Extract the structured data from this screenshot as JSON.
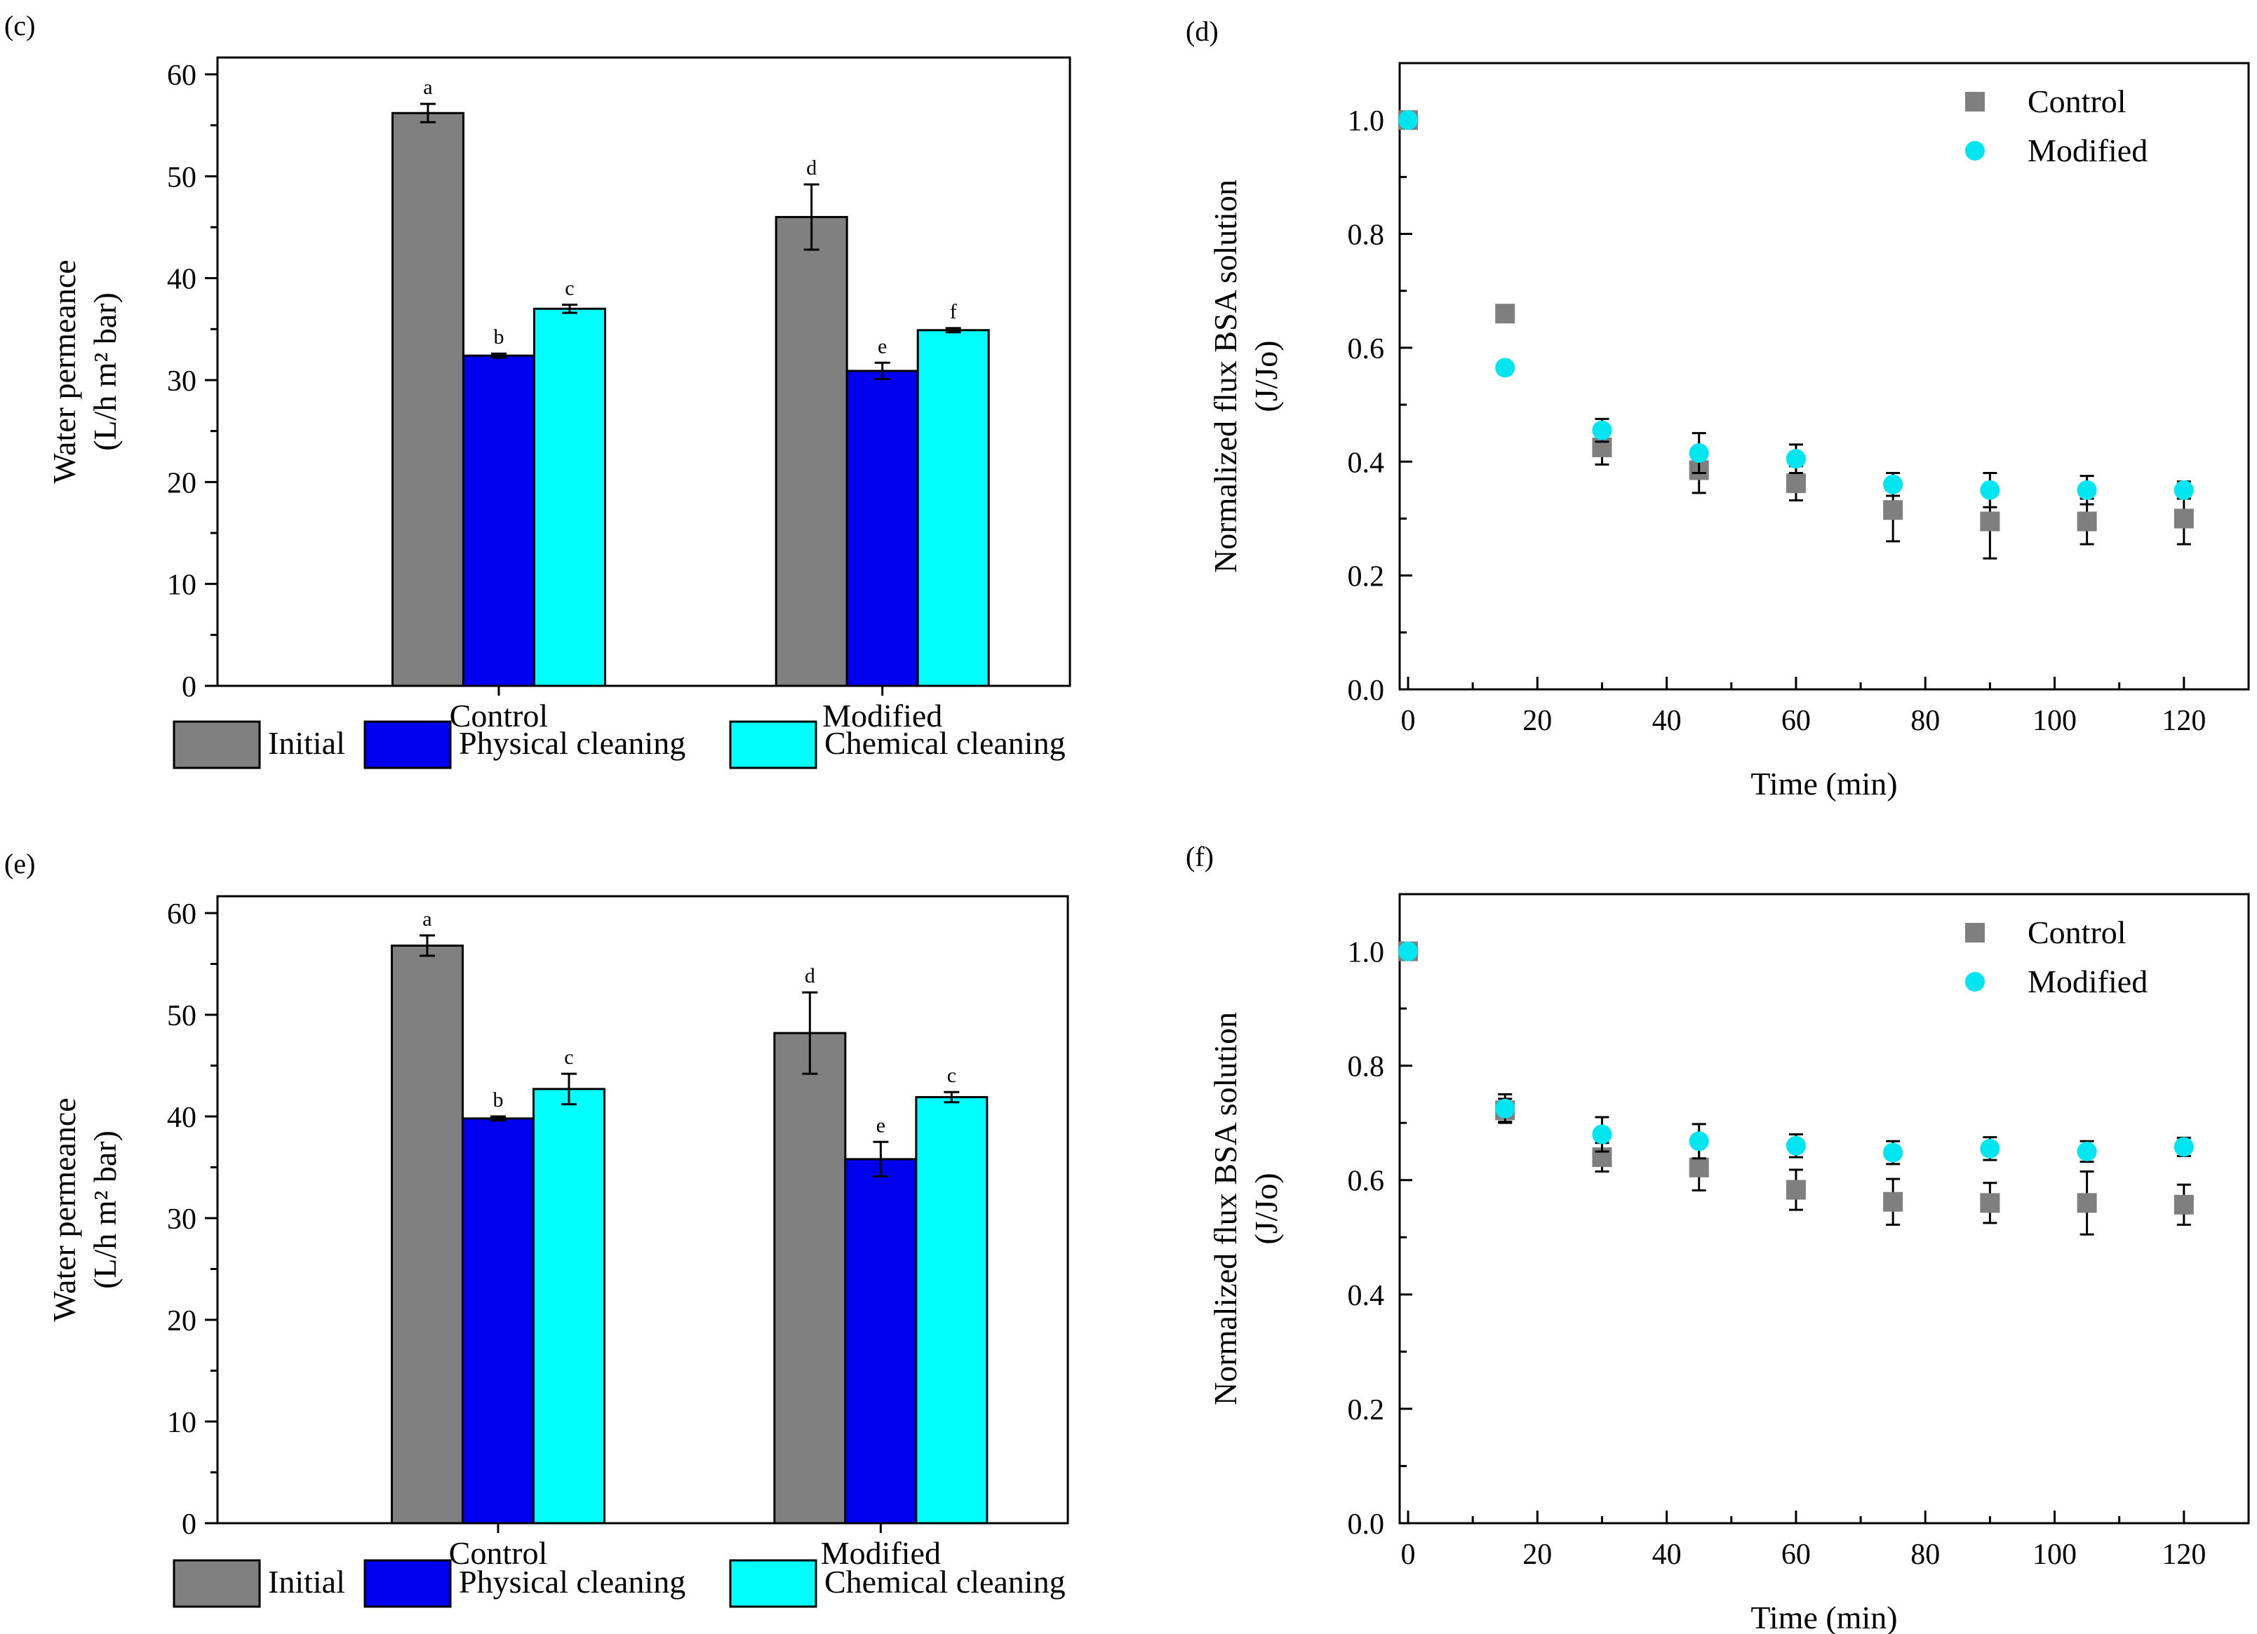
{
  "colors": {
    "initial": "#808080",
    "physical": "#0000ee",
    "chemical": "#00ffff",
    "control_marker": "#7f7f7f",
    "modified_marker": "#00e5f0"
  },
  "chart_data": [
    {
      "panel": "(c)",
      "type": "bar",
      "ylabel": "Water permeance",
      "ylabel_units": "(L/h m² bar)",
      "ylim": [
        0,
        60
      ],
      "yticks": [
        0,
        10,
        20,
        30,
        40,
        50,
        60
      ],
      "categories": [
        "Control",
        "Modified"
      ],
      "series": [
        {
          "name": "Initial",
          "color_key": "initial",
          "values": [
            56.2,
            46.0
          ],
          "errors": [
            0.9,
            3.2
          ],
          "letters": [
            "a",
            "d"
          ]
        },
        {
          "name": "Physical cleaning",
          "color_key": "physical",
          "values": [
            32.4,
            30.9
          ],
          "errors": [
            0.2,
            0.8
          ],
          "letters": [
            "b",
            "e"
          ]
        },
        {
          "name": "Chemical cleaning",
          "color_key": "chemical",
          "values": [
            37.0,
            34.9
          ],
          "errors": [
            0.4,
            0.2
          ],
          "letters": [
            "c",
            "f"
          ]
        }
      ]
    },
    {
      "panel": "(d)",
      "type": "scatter",
      "ylabel": "Normalized flux BSA solution",
      "ylabel_units": "(J/Jo)",
      "xlabel": "Time (min)",
      "xlim": [
        0,
        130
      ],
      "ylim": [
        0,
        1.1
      ],
      "xticks": [
        0,
        20,
        40,
        60,
        80,
        100,
        120
      ],
      "yticks": [
        "0.0",
        "0.2",
        "0.4",
        "0.6",
        "0.8",
        "1.0"
      ],
      "legend_position": "top-right",
      "series": [
        {
          "name": "Control",
          "marker": "square",
          "color_key": "control_marker",
          "x": [
            0,
            15,
            30,
            45,
            60,
            75,
            90,
            105,
            120
          ],
          "y": [
            1.0,
            0.66,
            0.425,
            0.385,
            0.362,
            0.315,
            0.295,
            0.295,
            0.3
          ],
          "err": [
            0.0,
            0.01,
            0.03,
            0.04,
            0.03,
            0.055,
            0.065,
            0.04,
            0.045
          ]
        },
        {
          "name": "Modified",
          "marker": "circle",
          "color_key": "modified_marker",
          "x": [
            0,
            15,
            30,
            45,
            60,
            75,
            90,
            105,
            120
          ],
          "y": [
            1.0,
            0.565,
            0.455,
            0.415,
            0.405,
            0.36,
            0.35,
            0.35,
            0.35
          ],
          "err": [
            0.0,
            0.01,
            0.02,
            0.035,
            0.025,
            0.02,
            0.03,
            0.025,
            0.015
          ]
        }
      ]
    },
    {
      "panel": "(e)",
      "type": "bar",
      "ylabel": "Water permeance",
      "ylabel_units": "(L/h m² bar)",
      "ylim": [
        0,
        60
      ],
      "yticks": [
        0,
        10,
        20,
        30,
        40,
        50,
        60
      ],
      "categories": [
        "Control",
        "Modified"
      ],
      "series": [
        {
          "name": "Initial",
          "color_key": "initial",
          "values": [
            56.8,
            48.2
          ],
          "errors": [
            1.0,
            4.0
          ],
          "letters": [
            "a",
            "d"
          ]
        },
        {
          "name": "Physical cleaning",
          "color_key": "physical",
          "values": [
            39.8,
            35.8
          ],
          "errors": [
            0.2,
            1.7
          ],
          "letters": [
            "b",
            "e"
          ]
        },
        {
          "name": "Chemical cleaning",
          "color_key": "chemical",
          "values": [
            42.7,
            41.9
          ],
          "errors": [
            1.5,
            0.5
          ],
          "letters": [
            "c",
            "c"
          ]
        }
      ]
    },
    {
      "panel": "(f)",
      "type": "scatter",
      "ylabel": "Normalized flux BSA solution",
      "ylabel_units": "(J/Jo)",
      "xlabel": "Time (min)",
      "xlim": [
        0,
        130
      ],
      "ylim": [
        0,
        1.1
      ],
      "xticks": [
        0,
        20,
        40,
        60,
        80,
        100,
        120
      ],
      "yticks": [
        "0.0",
        "0.2",
        "0.4",
        "0.6",
        "0.8",
        "1.0"
      ],
      "legend_position": "top-right",
      "series": [
        {
          "name": "Control",
          "marker": "square",
          "color_key": "control_marker",
          "x": [
            0,
            15,
            30,
            45,
            60,
            75,
            90,
            105,
            120
          ],
          "y": [
            1.0,
            0.722,
            0.64,
            0.622,
            0.583,
            0.562,
            0.56,
            0.56,
            0.557
          ],
          "err": [
            0.0,
            0.02,
            0.025,
            0.04,
            0.035,
            0.04,
            0.035,
            0.055,
            0.035
          ]
        },
        {
          "name": "Modified",
          "marker": "circle",
          "color_key": "modified_marker",
          "x": [
            0,
            15,
            30,
            45,
            60,
            75,
            90,
            105,
            120
          ],
          "y": [
            1.0,
            0.725,
            0.68,
            0.668,
            0.66,
            0.648,
            0.655,
            0.65,
            0.658
          ],
          "err": [
            0.0,
            0.025,
            0.03,
            0.03,
            0.02,
            0.02,
            0.02,
            0.018,
            0.016
          ]
        }
      ]
    }
  ]
}
